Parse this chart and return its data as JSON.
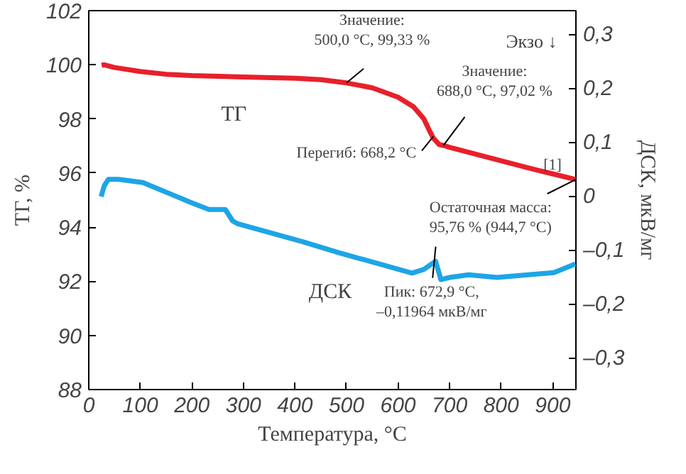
{
  "chart_data": {
    "type": "line",
    "xlabel": "Температура, °C",
    "ylabel": "ТГ, %",
    "y2label": "ДСК, мкВ/мг",
    "xlim": [
      0,
      945
    ],
    "xticks": [
      0,
      100,
      200,
      300,
      400,
      500,
      600,
      700,
      800,
      900
    ],
    "ylim": [
      88,
      102
    ],
    "yticks": [
      88,
      90,
      92,
      94,
      96,
      98,
      100,
      102
    ],
    "y2lim": [
      -0.358,
      0.345
    ],
    "y2ticks": [
      {
        "value": -0.3,
        "label": "–0,3"
      },
      {
        "value": -0.2,
        "label": "–0,2"
      },
      {
        "value": -0.1,
        "label": "–0,1"
      },
      {
        "value": 0,
        "label": "0"
      },
      {
        "value": 0.1,
        "label": "0,1"
      },
      {
        "value": 0.2,
        "label": "0,2"
      },
      {
        "value": 0.3,
        "label": "0,3"
      }
    ],
    "grid": false,
    "series": [
      {
        "name": "ТГ",
        "color": "#e8202a",
        "x": [
          25,
          30,
          50,
          100,
          150,
          200,
          300,
          400,
          450,
          500,
          550,
          600,
          630,
          650,
          660,
          668,
          680,
          688,
          700,
          750,
          800,
          850,
          900,
          944.7
        ],
        "values": [
          99.98,
          100.0,
          99.9,
          99.75,
          99.65,
          99.6,
          99.55,
          99.5,
          99.45,
          99.33,
          99.15,
          98.8,
          98.45,
          98.0,
          97.6,
          97.3,
          97.05,
          97.02,
          96.95,
          96.7,
          96.45,
          96.2,
          95.97,
          95.76
        ]
      },
      {
        "name": "ДСК",
        "color": "#1ea5e6",
        "axis": "y2",
        "x": [
          24,
          30,
          38,
          58,
          105,
          196,
          233,
          265,
          279,
          288,
          416,
          485,
          627,
          650,
          672.9,
          683,
          700,
          737,
          792,
          902,
          944
        ],
        "values": [
          0.0,
          0.02,
          0.032,
          0.032,
          0.026,
          -0.01,
          -0.024,
          -0.024,
          -0.045,
          -0.05,
          -0.084,
          -0.104,
          -0.142,
          -0.135,
          -0.12,
          -0.154,
          -0.15,
          -0.145,
          -0.15,
          -0.141,
          -0.125
        ]
      }
    ],
    "annotations": [
      {
        "text": "Значение:\n500,0 °C, 99,33 %",
        "x": 500,
        "y": 99.33
      },
      {
        "text": "Значение:\n688,0 °C, 97,02 %",
        "x": 688,
        "y": 97.02
      },
      {
        "text": "Перегиб: 668,2 °C",
        "x": 668.2,
        "y": 97.35
      },
      {
        "text": "Остаточная масса:\n95,76 % (944,7 °C)",
        "x": 944.7,
        "y": 95.76
      },
      "[1]",
      "Экзо ↓",
      "Пик: 672,9 °C,\n–0,11964 мкВ/мг"
    ]
  }
}
